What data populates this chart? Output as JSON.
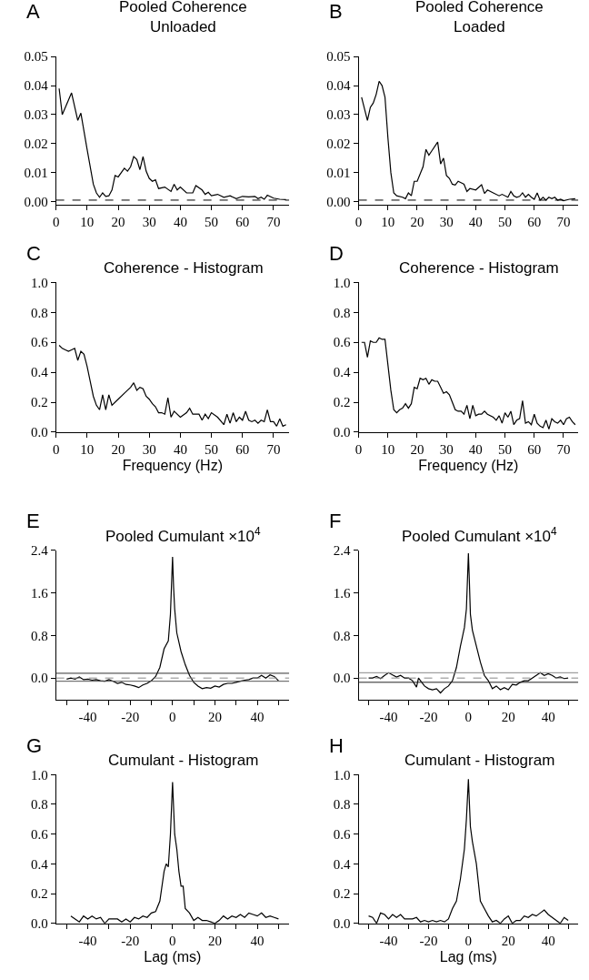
{
  "chart_data": [
    {
      "type": "line",
      "title": "Pooled Coherence\nUnloaded",
      "annotations": [
        "A"
      ],
      "color": "#000000",
      "xlim": [
        0,
        75
      ],
      "xticks": [
        0,
        10,
        20,
        30,
        40,
        50,
        60,
        70
      ],
      "ylim": [
        -0.001,
        0.05
      ],
      "yticks": [
        {
          "value": 0,
          "label": "0.00"
        },
        {
          "value": 0.01,
          "label": "0.01"
        },
        {
          "value": 0.02,
          "label": "0.02"
        },
        {
          "value": 0.03,
          "label": "0.03"
        },
        {
          "value": 0.04,
          "label": "0.04"
        },
        {
          "value": 0.05,
          "label": "0.05"
        }
      ],
      "ref_lines": [
        {
          "axis": "y",
          "value": 0.0005,
          "color": "#000000",
          "line_style": "dashed"
        }
      ],
      "x": [
        1,
        2,
        5,
        7,
        8,
        10,
        12,
        13,
        14,
        15,
        16,
        17,
        18,
        19,
        20,
        22,
        23,
        24,
        25,
        26,
        27,
        28,
        29,
        30,
        31,
        32,
        33,
        35,
        37,
        38,
        39,
        40,
        42,
        44,
        45,
        47,
        48,
        49,
        50,
        52,
        54,
        56,
        58,
        60,
        62,
        64,
        65,
        66,
        67,
        68,
        70,
        72,
        74
      ],
      "values": [
        0.039,
        0.03,
        0.0375,
        0.028,
        0.0305,
        0.018,
        0.006,
        0.003,
        0.0015,
        0.003,
        0.0018,
        0.002,
        0.004,
        0.009,
        0.0085,
        0.0115,
        0.0105,
        0.012,
        0.0155,
        0.0145,
        0.011,
        0.0155,
        0.0105,
        0.008,
        0.007,
        0.0075,
        0.0045,
        0.005,
        0.0035,
        0.006,
        0.004,
        0.005,
        0.003,
        0.003,
        0.0055,
        0.004,
        0.0025,
        0.0032,
        0.002,
        0.0025,
        0.0015,
        0.002,
        0.001,
        0.0018,
        0.0016,
        0.0018,
        0.001,
        0.0015,
        0.0008,
        0.0022,
        0.0012,
        0.0008,
        0.0007
      ]
    },
    {
      "type": "line",
      "title": "Pooled Coherence\nLoaded",
      "annotations": [
        "B"
      ],
      "color": "#000000",
      "xlim": [
        0,
        75
      ],
      "xticks": [
        0,
        10,
        20,
        30,
        40,
        50,
        60,
        70
      ],
      "ylim": [
        -0.001,
        0.05
      ],
      "yticks": [
        {
          "value": 0,
          "label": "0.00"
        },
        {
          "value": 0.01,
          "label": "0.01"
        },
        {
          "value": 0.02,
          "label": "0.02"
        },
        {
          "value": 0.03,
          "label": "0.03"
        },
        {
          "value": 0.04,
          "label": "0.04"
        },
        {
          "value": 0.05,
          "label": "0.05"
        }
      ],
      "ref_lines": [
        {
          "axis": "y",
          "value": 0.0005,
          "color": "#000000",
          "line_style": "dashed"
        }
      ],
      "x": [
        1,
        3,
        4,
        5,
        6,
        7,
        8,
        9,
        10,
        11,
        12,
        13,
        15,
        16,
        17,
        18,
        19,
        20,
        22,
        23,
        24,
        25,
        27,
        28,
        29,
        30,
        31,
        32,
        33,
        34,
        36,
        37,
        38,
        40,
        42,
        43,
        44,
        46,
        48,
        49,
        51,
        52,
        53,
        54,
        55,
        56,
        57,
        58,
        59,
        60,
        61,
        62,
        63,
        64,
        65,
        66,
        67,
        68,
        69,
        70,
        72,
        74
      ],
      "values": [
        0.036,
        0.028,
        0.0325,
        0.034,
        0.037,
        0.0415,
        0.04,
        0.036,
        0.022,
        0.01,
        0.003,
        0.002,
        0.0015,
        0.001,
        0.003,
        0.002,
        0.007,
        0.007,
        0.012,
        0.018,
        0.016,
        0.0175,
        0.0205,
        0.013,
        0.015,
        0.009,
        0.008,
        0.006,
        0.0057,
        0.007,
        0.006,
        0.0035,
        0.0045,
        0.004,
        0.0058,
        0.0028,
        0.004,
        0.003,
        0.002,
        0.0025,
        0.0015,
        0.0035,
        0.002,
        0.0015,
        0.0018,
        0.003,
        0.0015,
        0.0025,
        0.0015,
        0.0008,
        0.003,
        0.0005,
        0.0015,
        0.0005,
        0.0015,
        0.001,
        0.0015,
        0.0005,
        0.0008,
        0.0003,
        0.0008,
        0.001
      ]
    },
    {
      "type": "line",
      "title": "Coherence - Histogram",
      "annotations": [
        "C"
      ],
      "xlabel": "Frequency (Hz)",
      "color": "#000000",
      "xlim": [
        0,
        75
      ],
      "xticks": [
        0,
        10,
        20,
        30,
        40,
        50,
        60,
        70
      ],
      "ylim": [
        0,
        1
      ],
      "yticks": [
        {
          "value": 0,
          "label": "0.0"
        },
        {
          "value": 0.2,
          "label": "0.2"
        },
        {
          "value": 0.4,
          "label": "0.4"
        },
        {
          "value": 0.6,
          "label": "0.6"
        },
        {
          "value": 0.8,
          "label": "0.8"
        },
        {
          "value": 1,
          "label": "1.0"
        }
      ],
      "x": [
        1,
        2,
        3,
        4,
        5,
        6,
        7,
        8,
        9,
        10,
        11,
        12,
        13,
        14,
        15,
        16,
        17,
        18,
        20,
        22,
        24,
        25,
        26,
        27,
        28,
        29,
        30,
        31,
        32,
        33,
        34,
        35,
        36,
        37,
        38,
        40,
        42,
        43,
        44,
        46,
        47,
        48,
        49,
        50,
        52,
        54,
        55,
        56,
        57,
        58,
        59,
        60,
        61,
        62,
        63,
        64,
        65,
        66,
        67,
        68,
        69,
        70,
        71,
        72,
        73,
        74
      ],
      "values": [
        0.58,
        0.56,
        0.55,
        0.54,
        0.55,
        0.56,
        0.48,
        0.54,
        0.52,
        0.44,
        0.34,
        0.24,
        0.18,
        0.15,
        0.25,
        0.15,
        0.25,
        0.18,
        0.22,
        0.26,
        0.3,
        0.33,
        0.28,
        0.3,
        0.29,
        0.24,
        0.22,
        0.19,
        0.17,
        0.13,
        0.13,
        0.12,
        0.23,
        0.1,
        0.14,
        0.1,
        0.13,
        0.16,
        0.12,
        0.12,
        0.08,
        0.12,
        0.09,
        0.13,
        0.1,
        0.05,
        0.12,
        0.06,
        0.13,
        0.07,
        0.1,
        0.08,
        0.14,
        0.08,
        0.07,
        0.08,
        0.06,
        0.08,
        0.07,
        0.15,
        0.07,
        0.07,
        0.04,
        0.09,
        0.04,
        0.05
      ]
    },
    {
      "type": "line",
      "title": "Coherence - Histogram",
      "annotations": [
        "D"
      ],
      "xlabel": "Frequency (Hz)",
      "color": "#000000",
      "xlim": [
        0,
        75
      ],
      "xticks": [
        0,
        10,
        20,
        30,
        40,
        50,
        60,
        70
      ],
      "ylim": [
        0,
        1
      ],
      "yticks": [
        {
          "value": 0,
          "label": "0.0"
        },
        {
          "value": 0.2,
          "label": "0.2"
        },
        {
          "value": 0.4,
          "label": "0.4"
        },
        {
          "value": 0.6,
          "label": "0.6"
        },
        {
          "value": 0.8,
          "label": "0.8"
        },
        {
          "value": 1,
          "label": "1.0"
        }
      ],
      "x": [
        1,
        2,
        3,
        4,
        5,
        6,
        7,
        8,
        9,
        10,
        11,
        12,
        13,
        14,
        15,
        16,
        17,
        18,
        19,
        20,
        21,
        22,
        23,
        24,
        25,
        26,
        27,
        28,
        29,
        30,
        31,
        32,
        33,
        34,
        35,
        36,
        37,
        38,
        39,
        40,
        41,
        42,
        43,
        44,
        46,
        47,
        48,
        49,
        50,
        51,
        52,
        53,
        54,
        55,
        56,
        57,
        58,
        59,
        60,
        61,
        62,
        63,
        64,
        65,
        66,
        67,
        68,
        69,
        70,
        71,
        72,
        73,
        74
      ],
      "values": [
        0.6,
        0.6,
        0.5,
        0.61,
        0.6,
        0.6,
        0.63,
        0.62,
        0.62,
        0.45,
        0.28,
        0.15,
        0.13,
        0.15,
        0.16,
        0.19,
        0.16,
        0.19,
        0.3,
        0.29,
        0.36,
        0.35,
        0.36,
        0.32,
        0.35,
        0.34,
        0.34,
        0.3,
        0.26,
        0.27,
        0.25,
        0.2,
        0.15,
        0.14,
        0.14,
        0.12,
        0.18,
        0.09,
        0.18,
        0.11,
        0.12,
        0.12,
        0.14,
        0.12,
        0.1,
        0.08,
        0.11,
        0.06,
        0.13,
        0.1,
        0.14,
        0.05,
        0.08,
        0.09,
        0.21,
        0.06,
        0.07,
        0.05,
        0.12,
        0.06,
        0.04,
        0.03,
        0.08,
        0.02,
        0.09,
        0.07,
        0.06,
        0.08,
        0.05,
        0.09,
        0.1,
        0.07,
        0.05
      ]
    },
    {
      "type": "line",
      "title": "Pooled Cumulant ×10$^{4}$",
      "annotations": [
        "E"
      ],
      "color": "#000000",
      "xlim": [
        -55,
        55
      ],
      "xticks": [
        {
          "value": -50,
          "label": null
        },
        -40,
        {
          "value": -30,
          "label": null
        },
        -20,
        {
          "value": -10,
          "label": null
        },
        0,
        {
          "value": 10,
          "label": null
        },
        20,
        {
          "value": 30,
          "label": null
        },
        40,
        {
          "value": 50,
          "label": null
        }
      ],
      "ylim": [
        -0.4,
        2.4
      ],
      "yticks": [
        {
          "value": 0,
          "label": "0.0"
        },
        {
          "value": 0.8,
          "label": "0.8"
        },
        {
          "value": 1.6,
          "label": "1.6"
        },
        {
          "value": 2.4,
          "label": "2.4"
        }
      ],
      "ref_lines": [
        {
          "axis": "y",
          "value": 0.09,
          "color": "#333333",
          "line_style": "solid"
        },
        {
          "axis": "y",
          "value": 0,
          "color": "#888888",
          "line_style": "dashed"
        },
        {
          "axis": "y",
          "value": -0.06,
          "color": "#555555",
          "line_style": "solid"
        }
      ],
      "x": [
        -50,
        -48,
        -46,
        -44,
        -42,
        -40,
        -38,
        -36,
        -34,
        -32,
        -30,
        -28,
        -26,
        -24,
        -22,
        -20,
        -18,
        -16,
        -14,
        -12,
        -10,
        -8,
        -6,
        -4,
        -2,
        -1,
        0,
        0.5,
        1,
        2,
        4,
        6,
        8,
        10,
        12,
        14,
        16,
        18,
        20,
        22,
        24,
        26,
        28,
        30,
        32,
        34,
        36,
        38,
        40,
        42,
        44,
        46,
        48,
        50
      ],
      "values": [
        -0.02,
        0.0,
        -0.02,
        0.02,
        -0.03,
        -0.02,
        -0.04,
        -0.03,
        -0.05,
        -0.06,
        -0.03,
        -0.06,
        -0.1,
        -0.08,
        -0.12,
        -0.13,
        -0.15,
        -0.18,
        -0.13,
        -0.1,
        -0.05,
        0.03,
        0.2,
        0.55,
        0.7,
        1.2,
        2.28,
        1.7,
        1.3,
        0.85,
        0.5,
        0.25,
        0.05,
        -0.08,
        -0.15,
        -0.2,
        -0.18,
        -0.19,
        -0.15,
        -0.17,
        -0.12,
        -0.1,
        -0.1,
        -0.08,
        -0.06,
        -0.04,
        -0.03,
        0.0,
        0.0,
        0.05,
        0.0,
        0.06,
        0.03,
        -0.05
      ]
    },
    {
      "type": "line",
      "title": "Pooled Cumulant ×10$^{4}$",
      "annotations": [
        "F"
      ],
      "color": "#000000",
      "xlim": [
        -55,
        55
      ],
      "xticks": [
        {
          "value": -50,
          "label": null
        },
        -40,
        {
          "value": -30,
          "label": null
        },
        -20,
        {
          "value": -10,
          "label": null
        },
        0,
        {
          "value": 10,
          "label": null
        },
        20,
        {
          "value": 30,
          "label": null
        },
        40,
        {
          "value": 50,
          "label": null
        }
      ],
      "ylim": [
        -0.4,
        2.4
      ],
      "yticks": [
        {
          "value": 0,
          "label": "0.0"
        },
        {
          "value": 0.8,
          "label": "0.8"
        },
        {
          "value": 1.6,
          "label": "1.6"
        },
        {
          "value": 2.4,
          "label": "2.4"
        }
      ],
      "ref_lines": [
        {
          "axis": "y",
          "value": 0.1,
          "color": "#888888",
          "line_style": "solid"
        },
        {
          "axis": "y",
          "value": 0,
          "color": "#888888",
          "line_style": "dashed"
        },
        {
          "axis": "y",
          "value": -0.08,
          "color": "#222222",
          "line_style": "solid"
        }
      ],
      "x": [
        -50,
        -48,
        -46,
        -44,
        -42,
        -40,
        -38,
        -36,
        -34,
        -32,
        -30,
        -28,
        -26,
        -25,
        -24,
        -22,
        -20,
        -18,
        -16,
        -14,
        -12,
        -10,
        -8,
        -6,
        -4,
        -2,
        -1,
        0,
        0.5,
        1,
        2,
        4,
        6,
        8,
        10,
        12,
        14,
        16,
        18,
        20,
        22,
        24,
        26,
        28,
        30,
        32,
        34,
        36,
        38,
        40,
        42,
        44,
        46,
        48,
        50
      ],
      "values": [
        0.0,
        0.0,
        0.03,
        -0.01,
        0.05,
        0.1,
        0.06,
        0.02,
        0.05,
        0.0,
        0.0,
        -0.05,
        -0.17,
        0.0,
        -0.05,
        -0.15,
        -0.2,
        -0.22,
        -0.2,
        -0.28,
        -0.2,
        -0.15,
        -0.05,
        0.2,
        0.6,
        0.95,
        1.3,
        2.35,
        1.8,
        1.2,
        0.9,
        0.6,
        0.3,
        0.05,
        -0.05,
        -0.2,
        -0.15,
        -0.22,
        -0.18,
        -0.22,
        -0.12,
        -0.13,
        -0.08,
        -0.05,
        -0.05,
        0.0,
        0.05,
        0.1,
        0.05,
        0.08,
        0.05,
        0.0,
        0.02,
        -0.01,
        0.0
      ]
    },
    {
      "type": "line",
      "title": "Cumulant - Histogram",
      "annotations": [
        "G"
      ],
      "xlabel": "Lag (ms)",
      "color": "#000000",
      "xlim": [
        -55,
        55
      ],
      "xticks": [
        {
          "value": -50,
          "label": null
        },
        -40,
        {
          "value": -30,
          "label": null
        },
        -20,
        {
          "value": -10,
          "label": null
        },
        0,
        {
          "value": 10,
          "label": null
        },
        20,
        {
          "value": 30,
          "label": null
        },
        40,
        {
          "value": 50,
          "label": null
        }
      ],
      "ylim": [
        0,
        1
      ],
      "yticks": [
        {
          "value": 0,
          "label": "0.0"
        },
        {
          "value": 0.2,
          "label": "0.2"
        },
        {
          "value": 0.4,
          "label": "0.4"
        },
        {
          "value": 0.6,
          "label": "0.6"
        },
        {
          "value": 0.8,
          "label": "0.8"
        },
        {
          "value": 1,
          "label": "1.0"
        }
      ],
      "x": [
        -48,
        -46,
        -44,
        -42,
        -40,
        -38,
        -36,
        -34,
        -32,
        -30,
        -28,
        -26,
        -24,
        -22,
        -20,
        -18,
        -16,
        -14,
        -12,
        -10,
        -8,
        -6,
        -4,
        -3,
        -2,
        -1,
        0,
        1,
        2,
        3,
        4,
        5,
        6,
        8,
        10,
        12,
        14,
        16,
        18,
        20,
        22,
        24,
        26,
        28,
        30,
        32,
        34,
        36,
        38,
        40,
        42,
        44,
        46,
        48,
        50
      ],
      "values": [
        0.05,
        0.03,
        0.01,
        0.05,
        0.03,
        0.05,
        0.03,
        0.04,
        0.0,
        0.03,
        0.03,
        0.03,
        0.01,
        0.03,
        0.01,
        0.04,
        0.03,
        0.05,
        0.04,
        0.07,
        0.08,
        0.15,
        0.35,
        0.4,
        0.38,
        0.6,
        0.95,
        0.6,
        0.5,
        0.35,
        0.25,
        0.25,
        0.1,
        0.07,
        0.02,
        0.04,
        0.02,
        0.02,
        0.01,
        0.0,
        0.02,
        0.05,
        0.03,
        0.05,
        0.04,
        0.06,
        0.04,
        0.07,
        0.06,
        0.05,
        0.07,
        0.04,
        0.05,
        0.04,
        0.03
      ]
    },
    {
      "type": "line",
      "title": "Cumulant - Histogram",
      "annotations": [
        "H"
      ],
      "xlabel": "Lag (ms)",
      "color": "#000000",
      "xlim": [
        -55,
        55
      ],
      "xticks": [
        {
          "value": -50,
          "label": null
        },
        -40,
        {
          "value": -30,
          "label": null
        },
        -20,
        {
          "value": -10,
          "label": null
        },
        0,
        {
          "value": 10,
          "label": null
        },
        20,
        {
          "value": 30,
          "label": null
        },
        40,
        {
          "value": 50,
          "label": null
        }
      ],
      "ylim": [
        0,
        1
      ],
      "yticks": [
        {
          "value": 0,
          "label": "0.0"
        },
        {
          "value": 0.2,
          "label": "0.2"
        },
        {
          "value": 0.4,
          "label": "0.4"
        },
        {
          "value": 0.6,
          "label": "0.6"
        },
        {
          "value": 0.8,
          "label": "0.8"
        },
        {
          "value": 1,
          "label": "1.0"
        }
      ],
      "x": [
        -50,
        -48,
        -46,
        -44,
        -42,
        -40,
        -38,
        -36,
        -34,
        -32,
        -30,
        -28,
        -26,
        -24,
        -22,
        -20,
        -18,
        -16,
        -14,
        -12,
        -10,
        -8,
        -6,
        -4,
        -2,
        -1,
        0,
        1,
        2,
        4,
        6,
        8,
        10,
        12,
        14,
        16,
        18,
        20,
        22,
        24,
        26,
        28,
        30,
        32,
        34,
        36,
        38,
        40,
        42,
        44,
        46,
        48,
        50
      ],
      "values": [
        0.05,
        0.04,
        0.0,
        0.07,
        0.06,
        0.03,
        0.06,
        0.04,
        0.06,
        0.03,
        0.03,
        0.03,
        0.04,
        0.01,
        0.02,
        0.01,
        0.02,
        0.01,
        0.02,
        0.01,
        0.03,
        0.1,
        0.15,
        0.3,
        0.5,
        0.7,
        0.97,
        0.65,
        0.55,
        0.4,
        0.15,
        0.1,
        0.05,
        0.01,
        0.02,
        0.0,
        0.03,
        0.05,
        0.0,
        0.02,
        0.02,
        0.05,
        0.04,
        0.06,
        0.05,
        0.07,
        0.09,
        0.06,
        0.04,
        0.02,
        0.0,
        0.04,
        0.02
      ]
    }
  ]
}
